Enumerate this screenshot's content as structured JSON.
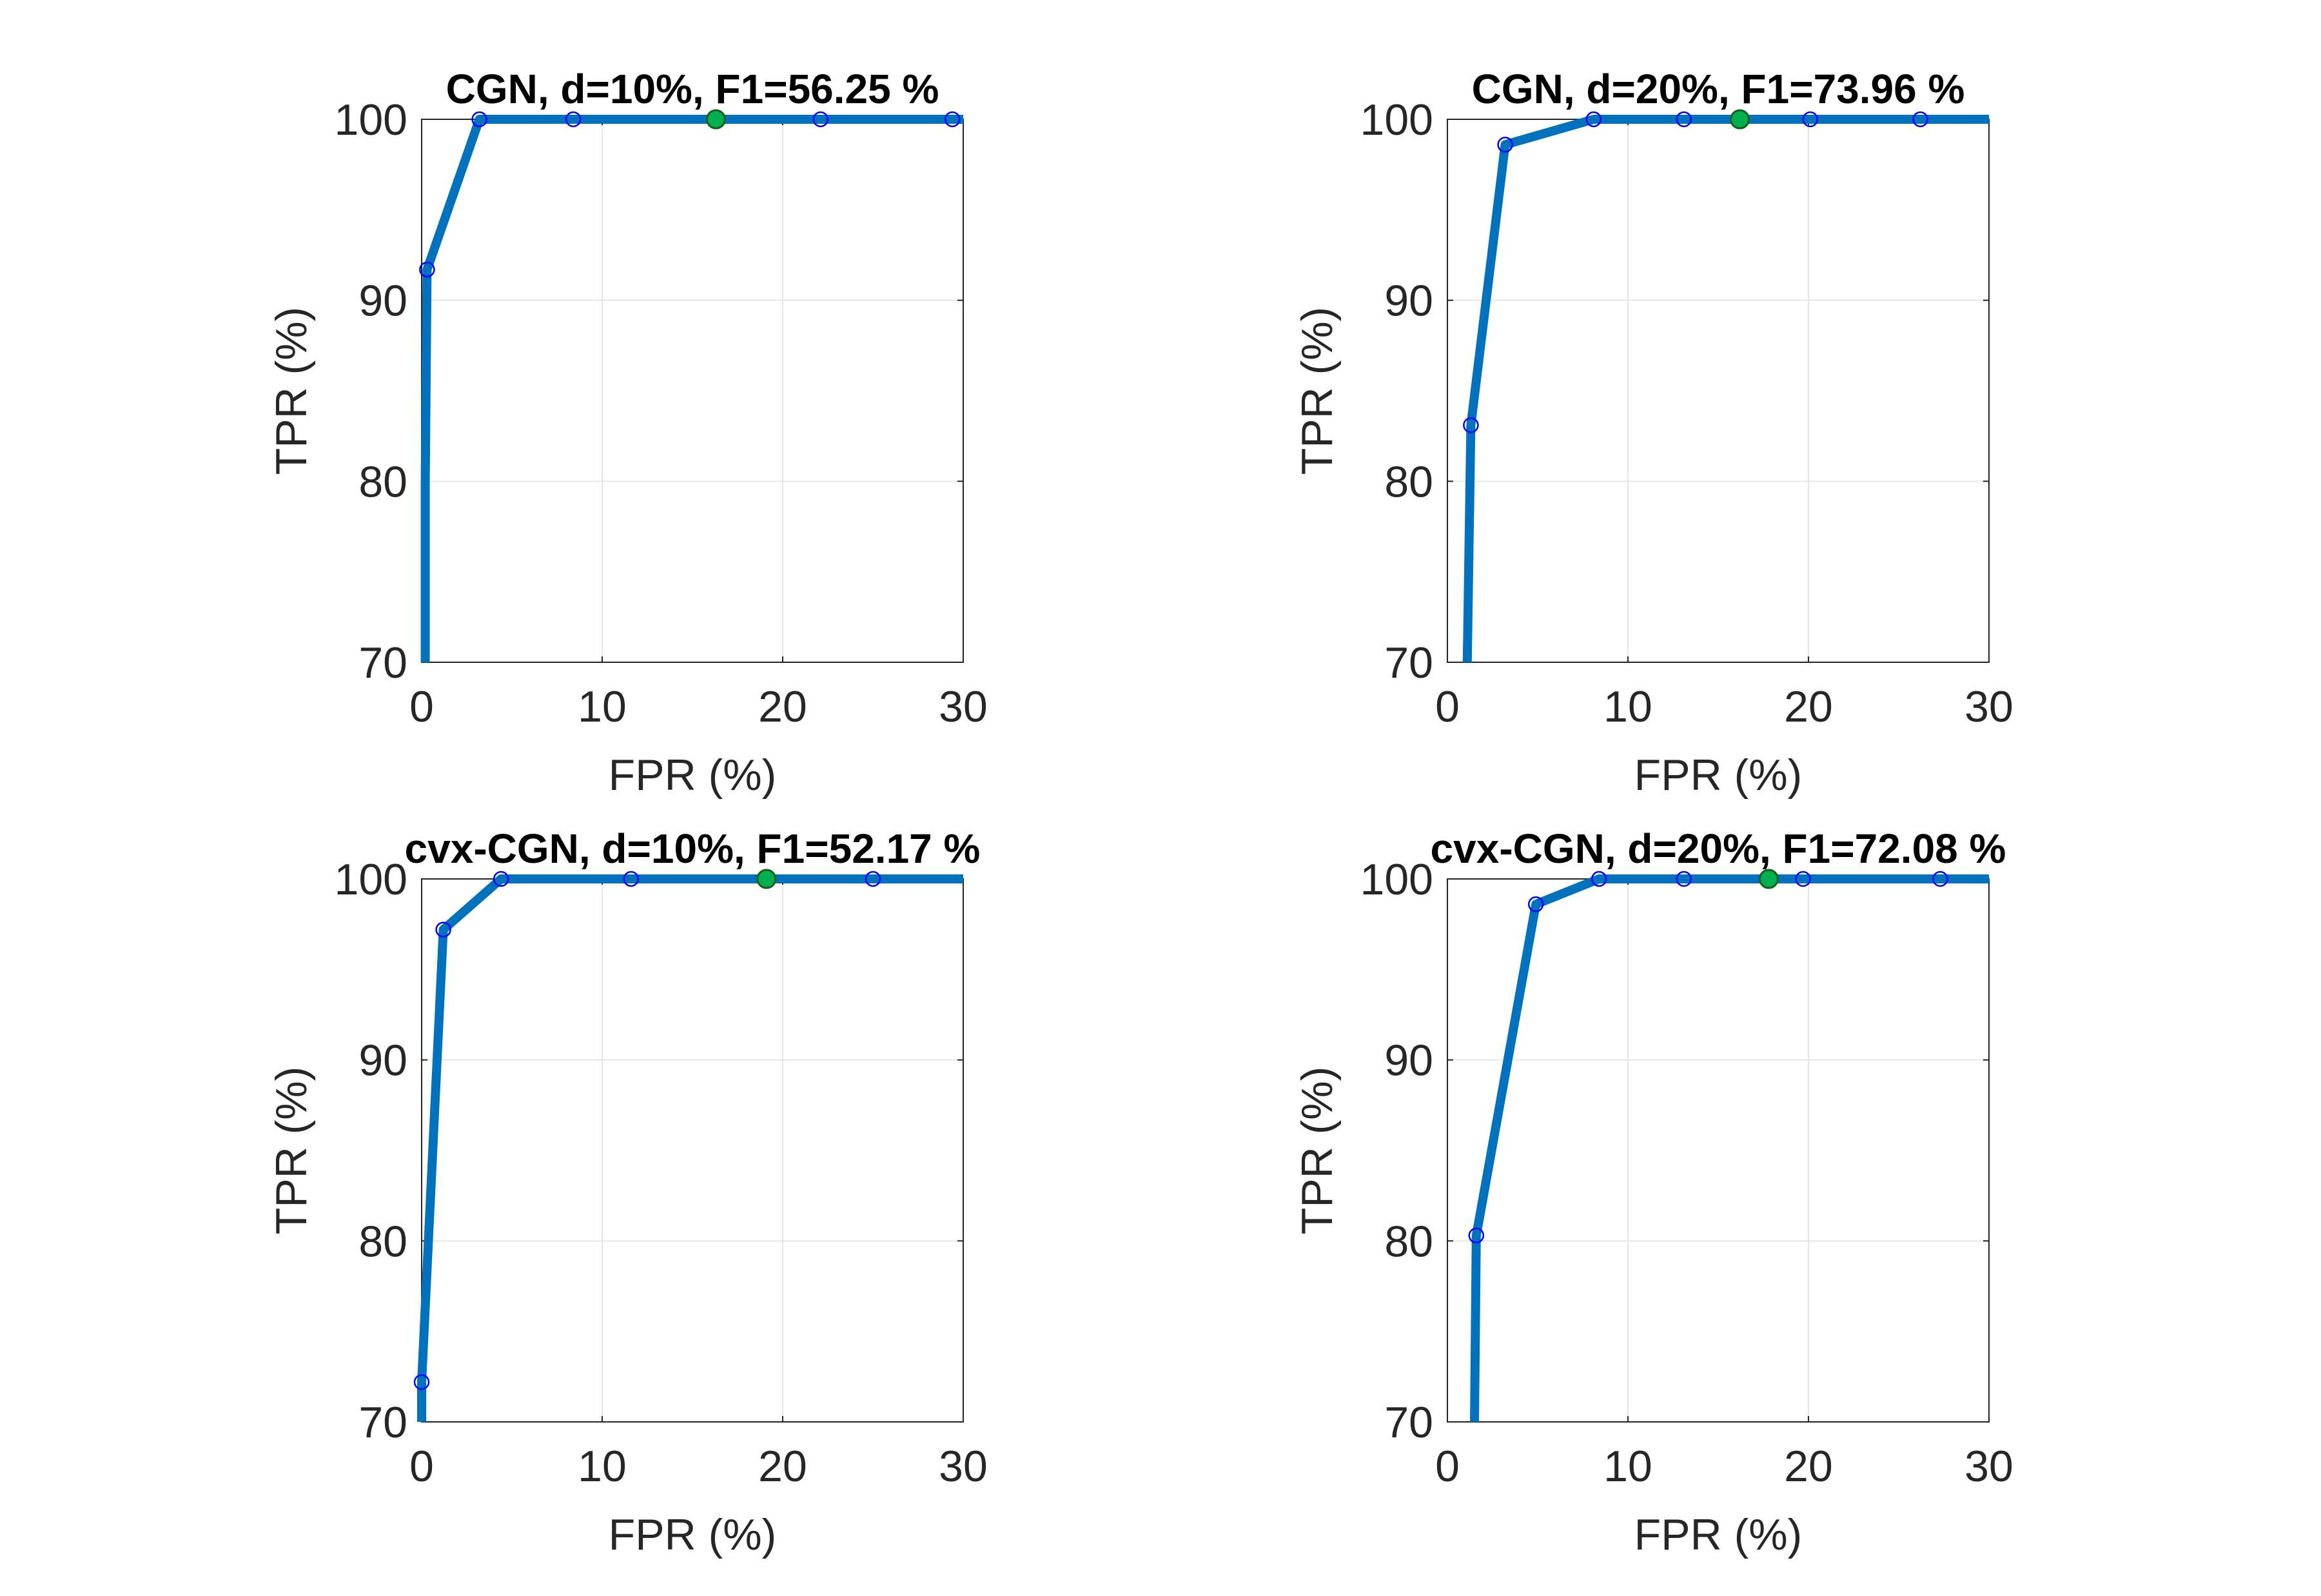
{
  "style": {
    "line_color": "#0072BD",
    "marker_color": "#0000FF",
    "best_marker_color": "#00B050"
  },
  "chart_data": [
    {
      "type": "line",
      "title": "CGN, d=10%, F1=56.25 %",
      "xlabel": "FPR (%)",
      "ylabel": "TPR (%)",
      "xlim": [
        0,
        30
      ],
      "ylim": [
        70,
        100
      ],
      "xticks": [
        0,
        10,
        20,
        30
      ],
      "yticks": [
        70,
        80,
        90,
        100
      ],
      "grid": true,
      "series": [
        {
          "x": [
            0.2,
            0.2,
            0.3,
            3.2,
            8.4,
            16.3,
            22.1,
            29.4,
            30
          ],
          "y": [
            70,
            80,
            91.7,
            100,
            100,
            100,
            100,
            100,
            100
          ],
          "markers": [
            [
              0.3,
              91.7
            ],
            [
              3.2,
              100
            ],
            [
              8.4,
              100
            ],
            [
              22.1,
              100
            ],
            [
              29.4,
              100
            ]
          ],
          "best_point": [
            16.3,
            100
          ]
        }
      ]
    },
    {
      "type": "line",
      "title": "CGN, d=20%, F1=73.96 %",
      "xlabel": "FPR (%)",
      "ylabel": "TPR (%)",
      "xlim": [
        0,
        30
      ],
      "ylim": [
        70,
        100
      ],
      "xticks": [
        0,
        10,
        20,
        30
      ],
      "yticks": [
        70,
        80,
        90,
        100
      ],
      "grid": true,
      "series": [
        {
          "x": [
            1.1,
            1.3,
            3.2,
            8.1,
            13.1,
            16.2,
            20.1,
            26.2,
            30
          ],
          "y": [
            70,
            83.1,
            98.6,
            100,
            100,
            100,
            100,
            100,
            100
          ],
          "markers": [
            [
              1.3,
              83.1
            ],
            [
              3.2,
              98.6
            ],
            [
              8.1,
              100
            ],
            [
              13.1,
              100
            ],
            [
              20.1,
              100
            ],
            [
              26.2,
              100
            ]
          ],
          "best_point": [
            16.2,
            100
          ]
        }
      ]
    },
    {
      "type": "line",
      "title": "cvx-CGN, d=10%, F1=52.17 %",
      "xlabel": "FPR (%)",
      "ylabel": "TPR (%)",
      "xlim": [
        0,
        30
      ],
      "ylim": [
        70,
        100
      ],
      "xticks": [
        0,
        10,
        20,
        30
      ],
      "yticks": [
        70,
        80,
        90,
        100
      ],
      "grid": true,
      "series": [
        {
          "x": [
            0,
            0,
            1.2,
            4.4,
            11.6,
            19.1,
            25.0,
            30
          ],
          "y": [
            70,
            72.2,
            97.2,
            100,
            100,
            100,
            100,
            100
          ],
          "markers": [
            [
              0,
              72.2
            ],
            [
              1.2,
              97.2
            ],
            [
              4.4,
              100
            ],
            [
              11.6,
              100
            ],
            [
              25.0,
              100
            ]
          ],
          "best_point": [
            19.1,
            100
          ]
        }
      ]
    },
    {
      "type": "line",
      "title": "cvx-CGN, d=20%, F1=72.08 %",
      "xlabel": "FPR (%)",
      "ylabel": "TPR (%)",
      "xlim": [
        0,
        30
      ],
      "ylim": [
        70,
        100
      ],
      "xticks": [
        0,
        10,
        20,
        30
      ],
      "yticks": [
        70,
        80,
        90,
        100
      ],
      "grid": true,
      "series": [
        {
          "x": [
            1.5,
            1.6,
            4.9,
            8.4,
            13.1,
            17.8,
            19.7,
            27.3,
            30
          ],
          "y": [
            70,
            80.3,
            98.6,
            100,
            100,
            100,
            100,
            100,
            100
          ],
          "markers": [
            [
              1.6,
              80.3
            ],
            [
              4.9,
              98.6
            ],
            [
              8.4,
              100
            ],
            [
              13.1,
              100
            ],
            [
              19.7,
              100
            ],
            [
              27.3,
              100
            ]
          ],
          "best_point": [
            17.8,
            100
          ]
        }
      ]
    }
  ]
}
